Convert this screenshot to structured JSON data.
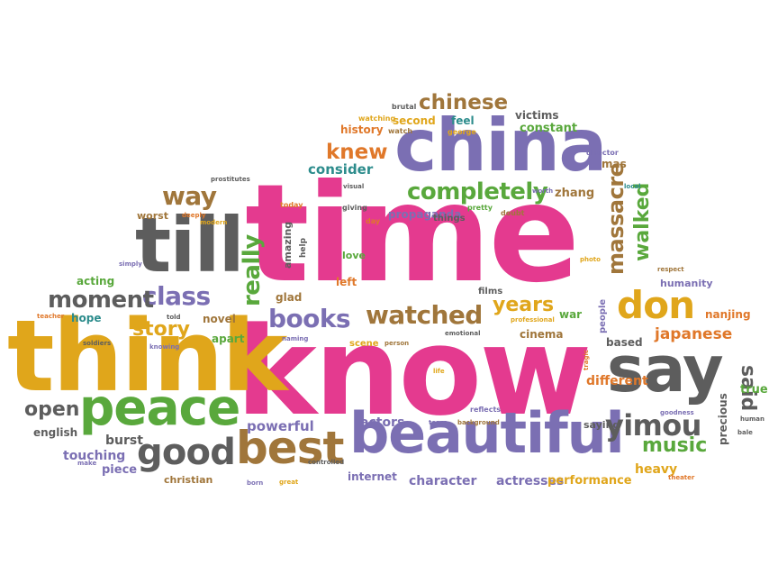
{
  "palette": {
    "pink": "#e43a8f",
    "purple": "#7b6fb3",
    "gold": "#e0a61b",
    "green": "#59a83c",
    "gray": "#5d5d5d",
    "brown": "#a0763b",
    "teal": "#2c8c8c",
    "orange": "#e0782a"
  },
  "words": [
    {
      "id": "time",
      "text": "time",
      "color": "pink"
    },
    {
      "id": "know",
      "text": "know",
      "color": "pink"
    },
    {
      "id": "think",
      "text": "think",
      "color": "gold"
    },
    {
      "id": "china",
      "text": "china",
      "color": "purple"
    },
    {
      "id": "beautiful",
      "text": "beautiful",
      "color": "purple"
    },
    {
      "id": "say",
      "text": "say",
      "color": "gray"
    },
    {
      "id": "till",
      "text": "till",
      "color": "gray"
    },
    {
      "id": "peace",
      "text": "peace",
      "color": "green"
    },
    {
      "id": "best",
      "text": "best",
      "color": "brown"
    },
    {
      "id": "good",
      "text": "good",
      "color": "gray"
    },
    {
      "id": "don",
      "text": "don",
      "color": "gold"
    },
    {
      "id": "yimou",
      "text": "yimou",
      "color": "gray"
    },
    {
      "id": "watched",
      "text": "watched",
      "color": "brown"
    },
    {
      "id": "books",
      "text": "books",
      "color": "purple"
    },
    {
      "id": "class",
      "text": "class",
      "color": "purple"
    },
    {
      "id": "moment",
      "text": "moment",
      "color": "gray"
    },
    {
      "id": "completely",
      "text": "completely",
      "color": "green"
    },
    {
      "id": "chinese",
      "text": "chinese",
      "color": "brown"
    },
    {
      "id": "way",
      "text": "way",
      "color": "brown"
    },
    {
      "id": "story",
      "text": "story",
      "color": "gold"
    },
    {
      "id": "really",
      "text": "really",
      "color": "green"
    },
    {
      "id": "massacre",
      "text": "massacre",
      "color": "brown"
    },
    {
      "id": "walked",
      "text": "walked",
      "color": "green"
    },
    {
      "id": "years",
      "text": "years",
      "color": "gold"
    },
    {
      "id": "knew",
      "text": "knew",
      "color": "orange"
    },
    {
      "id": "music",
      "text": "music",
      "color": "green"
    },
    {
      "id": "said",
      "text": "said",
      "color": "gray"
    },
    {
      "id": "open",
      "text": "open",
      "color": "gray"
    },
    {
      "id": "japanese",
      "text": "japanese",
      "color": "orange"
    },
    {
      "id": "consider",
      "text": "consider",
      "color": "teal"
    },
    {
      "id": "powerful",
      "text": "powerful",
      "color": "purple"
    },
    {
      "id": "actors",
      "text": "actors",
      "color": "purple"
    },
    {
      "id": "burst",
      "text": "burst",
      "color": "gray"
    },
    {
      "id": "touching",
      "text": "touching",
      "color": "purple"
    },
    {
      "id": "character",
      "text": "character",
      "color": "purple"
    },
    {
      "id": "actresses",
      "text": "actresses",
      "color": "purple"
    },
    {
      "id": "performance",
      "text": "performance",
      "color": "gold"
    },
    {
      "id": "heavy",
      "text": "heavy",
      "color": "gold"
    },
    {
      "id": "english",
      "text": "english",
      "color": "gray"
    },
    {
      "id": "piece",
      "text": "piece",
      "color": "purple"
    },
    {
      "id": "christian",
      "text": "christian",
      "color": "brown"
    },
    {
      "id": "internet",
      "text": "internet",
      "color": "purple"
    },
    {
      "id": "different",
      "text": "different",
      "color": "orange"
    },
    {
      "id": "humanity",
      "text": "humanity",
      "color": "purple"
    },
    {
      "id": "nanjing",
      "text": "nanjing",
      "color": "orange"
    },
    {
      "id": "true",
      "text": "true",
      "color": "green"
    },
    {
      "id": "precious",
      "text": "precious",
      "color": "gray"
    },
    {
      "id": "based",
      "text": "based",
      "color": "gray"
    },
    {
      "id": "cinema",
      "text": "cinema",
      "color": "brown"
    },
    {
      "id": "victims",
      "text": "victims",
      "color": "gray"
    },
    {
      "id": "constant",
      "text": "constant",
      "color": "green"
    },
    {
      "id": "second",
      "text": "second",
      "color": "gold"
    },
    {
      "id": "history",
      "text": "history",
      "color": "orange"
    },
    {
      "id": "feel",
      "text": "feel",
      "color": "teal"
    },
    {
      "id": "zhang",
      "text": "zhang",
      "color": "brown"
    },
    {
      "id": "acting",
      "text": "acting",
      "color": "green"
    },
    {
      "id": "hope",
      "text": "hope",
      "color": "teal"
    },
    {
      "id": "novel",
      "text": "novel",
      "color": "brown"
    },
    {
      "id": "apart",
      "text": "apart",
      "color": "green"
    },
    {
      "id": "glad",
      "text": "glad",
      "color": "brown"
    },
    {
      "id": "left",
      "text": "left",
      "color": "orange"
    },
    {
      "id": "love",
      "text": "love",
      "color": "green"
    },
    {
      "id": "amazing",
      "text": "amazing",
      "color": "gray"
    },
    {
      "id": "worst",
      "text": "worst",
      "color": "brown"
    },
    {
      "id": "propaganda",
      "text": "propaganda",
      "color": "purple"
    },
    {
      "id": "things",
      "text": "things",
      "color": "gray"
    },
    {
      "id": "war",
      "text": "war",
      "color": "green"
    },
    {
      "id": "mas",
      "text": "mas",
      "color": "brown"
    },
    {
      "id": "scene",
      "text": "scene",
      "color": "gold"
    },
    {
      "id": "saying",
      "text": "saying",
      "color": "gray"
    },
    {
      "id": "films",
      "text": "films",
      "color": "gray"
    },
    {
      "id": "people",
      "text": "people",
      "color": "purple"
    },
    {
      "id": "help",
      "text": "help",
      "color": "gray"
    },
    {
      "id": "brutal",
      "text": "brutal",
      "color": "gray"
    },
    {
      "id": "watching",
      "text": "watching",
      "color": "gold"
    },
    {
      "id": "watch",
      "text": "watch",
      "color": "brown"
    },
    {
      "id": "george",
      "text": "george",
      "color": "gold"
    },
    {
      "id": "director",
      "text": "director",
      "color": "purple"
    },
    {
      "id": "prostitutes",
      "text": "prostitutes",
      "color": "gray"
    },
    {
      "id": "visual",
      "text": "visual",
      "color": "gray"
    },
    {
      "id": "worth",
      "text": "worth",
      "color": "purple"
    },
    {
      "id": "local",
      "text": "local",
      "color": "teal"
    },
    {
      "id": "today",
      "text": "today",
      "color": "orange"
    },
    {
      "id": "giving",
      "text": "giving",
      "color": "gray"
    },
    {
      "id": "pretty",
      "text": "pretty",
      "color": "green"
    },
    {
      "id": "doubt",
      "text": "doubt",
      "color": "brown"
    },
    {
      "id": "deeply",
      "text": "deeply",
      "color": "orange"
    },
    {
      "id": "modern",
      "text": "modern",
      "color": "gold"
    },
    {
      "id": "day",
      "text": "day",
      "color": "orange"
    },
    {
      "id": "simply",
      "text": "simply",
      "color": "purple"
    },
    {
      "id": "photo",
      "text": "photo",
      "color": "gold"
    },
    {
      "id": "respect",
      "text": "respect",
      "color": "brown"
    },
    {
      "id": "teacher",
      "text": "teacher",
      "color": "orange"
    },
    {
      "id": "told",
      "text": "told",
      "color": "gray"
    },
    {
      "id": "soldiers",
      "text": "soldiers",
      "color": "gray"
    },
    {
      "id": "knowing",
      "text": "knowing",
      "color": "purple"
    },
    {
      "id": "naming",
      "text": "naming",
      "color": "purple"
    },
    {
      "id": "person",
      "text": "person",
      "color": "brown"
    },
    {
      "id": "emotional",
      "text": "emotional",
      "color": "gray"
    },
    {
      "id": "professional",
      "text": "professional",
      "color": "gold"
    },
    {
      "id": "tragic",
      "text": "tragic",
      "color": "orange"
    },
    {
      "id": "life",
      "text": "life",
      "color": "gold"
    },
    {
      "id": "reflects",
      "text": "reflects",
      "color": "purple"
    },
    {
      "id": "tears",
      "text": "tears",
      "color": "purple"
    },
    {
      "id": "background",
      "text": "background",
      "color": "brown"
    },
    {
      "id": "goodness",
      "text": "goodness",
      "color": "purple"
    },
    {
      "id": "bale",
      "text": "bale",
      "color": "gray"
    },
    {
      "id": "human",
      "text": "human",
      "color": "gray"
    },
    {
      "id": "theater",
      "text": "theater",
      "color": "orange"
    },
    {
      "id": "make",
      "text": "make",
      "color": "purple"
    },
    {
      "id": "born",
      "text": "born",
      "color": "purple"
    },
    {
      "id": "great",
      "text": "great",
      "color": "gold"
    },
    {
      "id": "controlled",
      "text": "controlled",
      "color": "gray"
    }
  ]
}
